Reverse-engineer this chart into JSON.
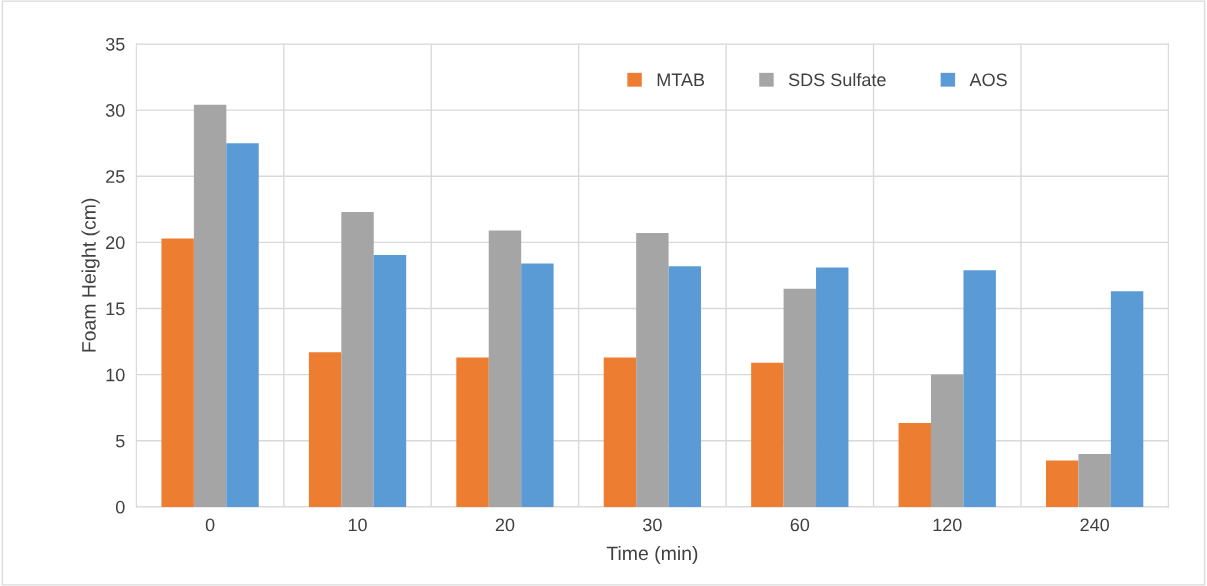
{
  "chart_data": {
    "type": "bar",
    "xlabel": "Time (min)",
    "ylabel": "Foam Height (cm)",
    "categories": [
      "0",
      "10",
      "20",
      "30",
      "60",
      "120",
      "240"
    ],
    "series": [
      {
        "name": "MTAB",
        "color": "#ed7d31",
        "values": [
          20.3,
          11.7,
          11.3,
          11.3,
          10.9,
          6.35,
          3.5
        ]
      },
      {
        "name": "SDS Sulfate",
        "color": "#a5a5a5",
        "values": [
          30.4,
          22.3,
          20.9,
          20.7,
          16.5,
          10.0,
          4.0
        ]
      },
      {
        "name": "AOS",
        "color": "#5b9bd5",
        "values": [
          27.5,
          19.05,
          18.4,
          18.2,
          18.1,
          17.9,
          16.3
        ]
      }
    ],
    "ylim": [
      0,
      35
    ],
    "yticks": [
      0,
      5,
      10,
      15,
      20,
      25,
      30,
      35
    ],
    "grid": true,
    "legend": "top"
  }
}
